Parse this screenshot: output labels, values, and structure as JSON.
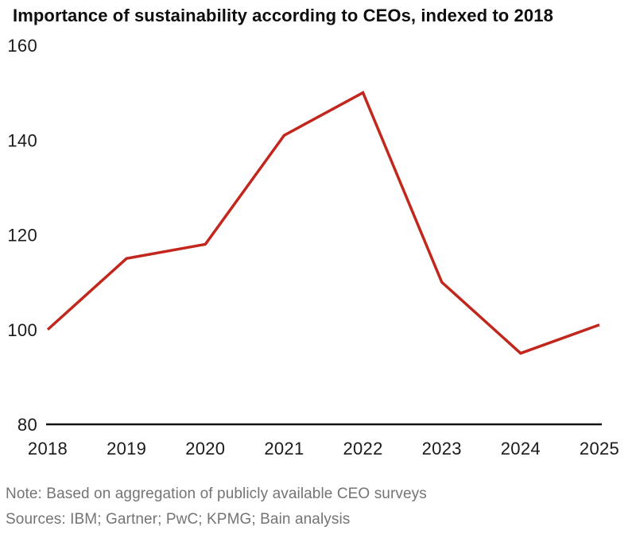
{
  "page": {
    "title": "Importance of sustainability according to CEOs, indexed to 2018",
    "note": "Note: Based on aggregation of publicly available CEO surveys",
    "sources": "Sources: IBM; Gartner; PwC; KPMG; Bain analysis"
  },
  "colors": {
    "line_red": "#c2271d",
    "axis_black": "#111111",
    "tick_text": "#1a1a1a",
    "footnote_gray": "#747474",
    "background": "#ffffff"
  },
  "chart_data": {
    "type": "line",
    "title": "Importance of sustainability according to CEOs, indexed to 2018",
    "categories": [
      "2018",
      "2019",
      "2020",
      "2021",
      "2022",
      "2023",
      "2024",
      "2025"
    ],
    "values": [
      100,
      115,
      118,
      141,
      150,
      110,
      95,
      101
    ],
    "xlabel": "",
    "ylabel": "",
    "ylim": [
      80,
      160
    ],
    "yticks": [
      80,
      100,
      120,
      140,
      160
    ],
    "grid": false,
    "legend": "none",
    "line_color": "#c2271d",
    "note": "Note: Based on aggregation of publicly available CEO surveys",
    "sources": "Sources: IBM; Gartner; PwC; KPMG; Bain analysis"
  }
}
